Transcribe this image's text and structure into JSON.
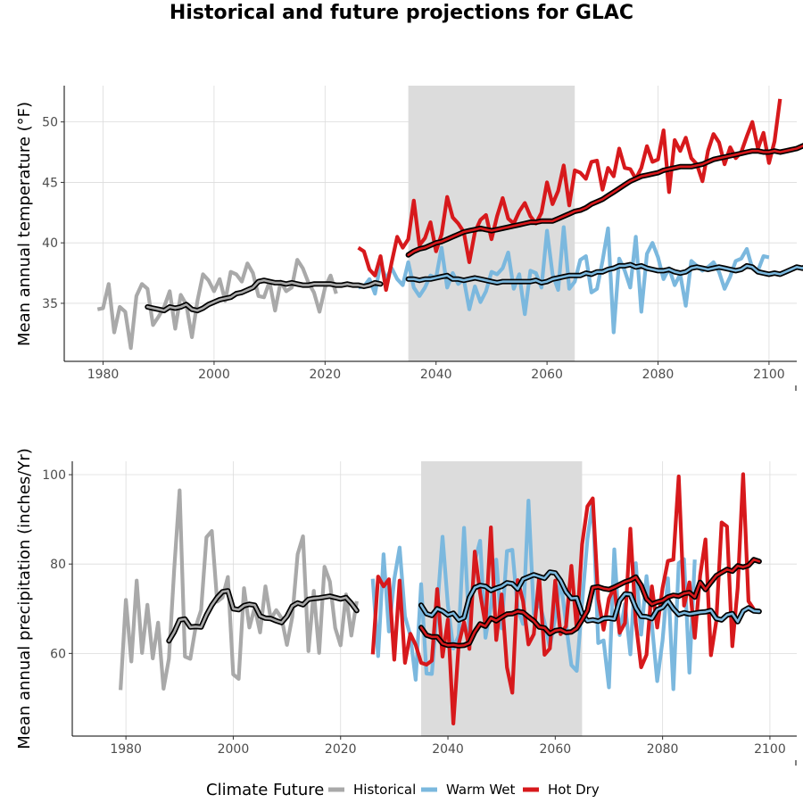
{
  "title": "Historical and future projections for GLAC",
  "legend": {
    "title": "Climate Future",
    "items": [
      {
        "label": "Historical",
        "color": "#a9a9a9"
      },
      {
        "label": "Warm Wet",
        "color": "#7bb8de"
      },
      {
        "label": "Hot Dry",
        "color": "#d7191c"
      }
    ]
  },
  "colors": {
    "historical": "#a9a9a9",
    "warm_wet": "#7bb8de",
    "hot_dry": "#d7191c",
    "smooth": "#000000",
    "shade": "#dcdcdc"
  },
  "chart_data": [
    {
      "type": "line",
      "ylabel": "Mean annual temperature (°F)",
      "xlim": [
        1973,
        2105
      ],
      "ylim": [
        30.2,
        53
      ],
      "xticks": [
        1980,
        2000,
        2020,
        2040,
        2060,
        2080,
        2100
      ],
      "yticks": [
        35,
        40,
        45,
        50
      ],
      "shaded_period": [
        2035,
        2065
      ],
      "series": [
        {
          "name": "Historical",
          "key": "historical",
          "x_start": 1979,
          "values": [
            34.5,
            34.6,
            36.6,
            32.6,
            34.7,
            34.3,
            31.3,
            35.6,
            36.6,
            36.2,
            33.2,
            33.9,
            34.7,
            36.0,
            32.9,
            35.7,
            34.9,
            32.2,
            35.2,
            37.4,
            36.9,
            36.0,
            37.0,
            35.2,
            37.6,
            37.4,
            36.8,
            38.3,
            37.5,
            35.6,
            35.5,
            36.8,
            34.4,
            36.8,
            36.0,
            36.3,
            38.6,
            37.9,
            36.7,
            35.9,
            34.3,
            36.3,
            37.3,
            35.8
          ]
        },
        {
          "name": "Warm Wet",
          "key": "warm_wet",
          "x_start": 2026,
          "values": [
            36.3,
            36.4,
            37.0,
            35.8,
            38.3,
            37.0,
            37.9,
            37.0,
            36.5,
            38.4,
            36.3,
            35.6,
            36.3,
            37.3,
            37.1,
            39.6,
            36.3,
            37.5,
            36.6,
            37.0,
            34.5,
            36.4,
            35.1,
            36.0,
            37.6,
            37.4,
            37.9,
            39.2,
            36.2,
            37.4,
            34.1,
            37.7,
            37.5,
            36.3,
            41.0,
            37.4,
            36.1,
            41.3,
            36.2,
            36.8,
            38.6,
            38.9,
            35.9,
            36.2,
            38.5,
            41.2,
            32.6,
            38.7,
            37.7,
            36.3,
            40.5,
            34.3,
            39.1,
            40.0,
            38.8,
            37.0,
            37.9,
            36.5,
            37.4,
            34.8,
            38.5,
            38.1,
            37.7,
            38.0,
            38.4,
            37.6,
            36.2,
            37.2,
            38.5,
            38.7,
            39.5,
            37.9,
            37.7,
            38.9,
            38.8
          ]
        },
        {
          "name": "Hot Dry",
          "key": "hot_dry",
          "x_start": 2026,
          "values": [
            39.6,
            39.3,
            37.8,
            37.3,
            38.9,
            36.1,
            38.4,
            40.5,
            39.6,
            40.3,
            43.5,
            39.8,
            40.4,
            41.7,
            39.3,
            40.7,
            43.8,
            42.1,
            41.6,
            40.9,
            38.4,
            40.9,
            41.9,
            42.3,
            40.3,
            42.2,
            43.7,
            42.0,
            41.6,
            42.6,
            43.3,
            42.2,
            41.6,
            42.5,
            45.0,
            43.2,
            44.3,
            46.4,
            43.1,
            46.0,
            45.8,
            45.3,
            46.7,
            46.8,
            44.4,
            46.2,
            45.5,
            47.8,
            46.2,
            46.1,
            45.3,
            46.2,
            48.0,
            46.7,
            46.9,
            49.3,
            44.2,
            48.5,
            47.6,
            48.7,
            47.0,
            46.5,
            45.1,
            47.6,
            49.0,
            48.3,
            46.5,
            47.9,
            47.0,
            47.5,
            48.8,
            50.0,
            47.8,
            49.1,
            46.6,
            48.4,
            51.9
          ]
        },
        {
          "name": "Historical smooth",
          "key": "historical",
          "smooth": true,
          "x_start": 1988,
          "values": [
            34.7,
            34.6,
            34.5,
            34.4,
            34.7,
            34.6,
            34.7,
            34.9,
            34.5,
            34.4,
            34.6,
            34.9,
            35.1,
            35.3,
            35.4,
            35.5,
            35.8,
            35.9,
            36.1,
            36.3,
            36.8,
            36.9,
            36.8,
            36.7,
            36.7,
            36.6,
            36.7,
            36.6,
            36.5,
            36.5,
            36.6,
            36.6,
            36.6,
            36.6,
            36.5,
            36.5,
            36.6,
            36.5,
            36.5,
            36.4,
            36.5,
            36.7,
            36.6
          ]
        },
        {
          "name": "Warm Wet smooth",
          "key": "warm_wet",
          "smooth": true,
          "x_start": 2035,
          "values": [
            37.0,
            37.0,
            36.9,
            37.0,
            37.0,
            37.1,
            37.2,
            37.3,
            37.0,
            37.0,
            36.9,
            37.0,
            37.1,
            37.0,
            36.9,
            36.8,
            36.7,
            36.8,
            36.8,
            36.8,
            36.8,
            36.8,
            36.8,
            36.9,
            36.7,
            36.8,
            37.0,
            37.1,
            37.2,
            37.3,
            37.3,
            37.3,
            37.5,
            37.4,
            37.6,
            37.6,
            37.8,
            37.9,
            38.1,
            38.1,
            38.2,
            38.0,
            38.1,
            37.9,
            37.8,
            37.7,
            37.7,
            37.8,
            37.6,
            37.5,
            37.6,
            37.9,
            38.0,
            37.9,
            37.8,
            37.9,
            38.0,
            37.9,
            37.8,
            37.7,
            37.8,
            38.1,
            38.0,
            37.6,
            37.5,
            37.4,
            37.5,
            37.4,
            37.6,
            37.8,
            38.0,
            37.9,
            38.1,
            38.2,
            38.2
          ]
        },
        {
          "name": "Hot Dry smooth",
          "key": "hot_dry",
          "smooth": true,
          "x_start": 2035,
          "values": [
            39.0,
            39.3,
            39.5,
            39.6,
            39.8,
            40.0,
            40.1,
            40.3,
            40.5,
            40.7,
            40.9,
            41.0,
            41.1,
            41.2,
            41.1,
            41.0,
            41.1,
            41.2,
            41.3,
            41.4,
            41.5,
            41.6,
            41.7,
            41.7,
            41.8,
            41.8,
            41.8,
            42.0,
            42.2,
            42.4,
            42.6,
            42.7,
            42.9,
            43.2,
            43.4,
            43.6,
            43.9,
            44.2,
            44.5,
            44.8,
            45.1,
            45.3,
            45.5,
            45.6,
            45.7,
            45.8,
            46.0,
            46.1,
            46.2,
            46.3,
            46.3,
            46.3,
            46.4,
            46.5,
            46.7,
            46.9,
            47.0,
            47.1,
            47.2,
            47.3,
            47.4,
            47.5,
            47.6,
            47.6,
            47.5,
            47.5,
            47.6,
            47.5,
            47.6,
            47.7,
            47.8,
            48.0,
            48.2,
            48.3,
            48.3
          ]
        }
      ]
    },
    {
      "type": "line",
      "ylabel": "Mean annual precipitation (inches/Yr)",
      "xlim": [
        1970,
        2105
      ],
      "ylim": [
        41.5,
        103
      ],
      "xticks": [
        1980,
        2000,
        2020,
        2040,
        2060,
        2080,
        2100
      ],
      "yticks": [
        60,
        80,
        100
      ],
      "shaded_period": [
        2035,
        2065
      ],
      "series": [
        {
          "name": "Historical",
          "key": "historical",
          "x_start": 1979,
          "values": [
            51.8,
            72.0,
            58.2,
            76.3,
            60.1,
            70.9,
            58.9,
            66.9,
            52.1,
            58.8,
            79.0,
            96.5,
            59.3,
            58.8,
            65.9,
            69.7,
            86.0,
            87.4,
            71.6,
            72.5,
            77.1,
            55.3,
            54.3,
            74.6,
            65.8,
            70.3,
            64.7,
            75.0,
            67.7,
            69.7,
            67.9,
            61.9,
            68.2,
            82.2,
            86.2,
            60.5,
            74.0,
            60.1,
            79.4,
            76.1,
            65.7,
            61.8,
            73.2,
            64.0,
            71.7
          ]
        },
        {
          "name": "Warm Wet",
          "key": "warm_wet",
          "x_start": 2026,
          "values": [
            76.7,
            59.4,
            82.2,
            64.9,
            76.6,
            83.7,
            68.3,
            64.0,
            54.1,
            75.5,
            55.5,
            55.4,
            70.0,
            86.1,
            70.8,
            61.1,
            64.0,
            88.1,
            64.7,
            80.6,
            85.2,
            63.5,
            70.5,
            81.0,
            65.6,
            82.9,
            83.2,
            70.0,
            66.6,
            94.2,
            68.8,
            71.5,
            66.9,
            61.4,
            68.1,
            76.6,
            66.5,
            57.4,
            56.1,
            71.2,
            85.6,
            93.9,
            62.3,
            62.9,
            52.4,
            83.3,
            64.1,
            71.1,
            59.8,
            80.2,
            64.2,
            77.3,
            66.6,
            53.8,
            62.9,
            76.8,
            52.0,
            80.2,
            81.1,
            55.7,
            81.0
          ]
        },
        {
          "name": "Hot Dry",
          "key": "hot_dry",
          "x_start": 2026,
          "values": [
            59.8,
            77.2,
            75.0,
            76.6,
            58.6,
            76.3,
            57.9,
            64.4,
            61.9,
            57.9,
            57.5,
            58.4,
            74.4,
            59.3,
            67.6,
            44.3,
            62.0,
            67.0,
            61.0,
            82.8,
            73.5,
            66.4,
            88.2,
            63.0,
            73.2,
            56.9,
            51.2,
            76.4,
            71.7,
            62.0,
            64.3,
            77.1,
            59.7,
            61.1,
            76.3,
            64.3,
            66.1,
            79.6,
            65.4,
            84.4,
            92.9,
            94.7,
            72.2,
            65.3,
            72.3,
            74.8,
            64.6,
            66.8,
            87.9,
            66.9,
            56.9,
            59.7,
            75.0,
            65.8,
            74.6,
            80.7,
            81.0,
            99.6,
            70.7,
            75.9,
            63.5,
            77.4,
            85.5,
            59.6,
            67.2,
            89.3,
            88.4,
            61.6,
            74.6,
            100.1,
            71.7,
            69.9
          ]
        },
        {
          "name": "Historical smooth",
          "key": "historical",
          "smooth": true,
          "x_start": 1988,
          "values": [
            62.8,
            64.8,
            67.5,
            67.7,
            65.9,
            66.0,
            65.9,
            68.6,
            70.8,
            72.5,
            73.8,
            74.0,
            70.0,
            69.8,
            70.7,
            71.0,
            70.8,
            68.4,
            67.9,
            67.8,
            67.3,
            66.9,
            68.3,
            70.6,
            71.3,
            70.9,
            72.1,
            72.3,
            72.4,
            72.6,
            72.8,
            72.5,
            72.2,
            72.5,
            71.2,
            69.6
          ]
        },
        {
          "name": "Warm Wet smooth",
          "key": "warm_wet",
          "smooth": true,
          "x_start": 2035,
          "values": [
            70.8,
            68.9,
            68.5,
            70.0,
            69.5,
            68.6,
            69.0,
            67.5,
            68.0,
            72.5,
            74.7,
            75.2,
            75.0,
            74.1,
            74.6,
            75.0,
            75.8,
            75.6,
            74.4,
            76.6,
            77.1,
            77.6,
            77.2,
            76.8,
            78.2,
            78.0,
            76.3,
            73.8,
            72.3,
            72.4,
            68.9,
            67.3,
            67.5,
            67.2,
            67.8,
            67.9,
            67.7,
            71.8,
            73.3,
            73.2,
            70.2,
            68.3,
            68.2,
            67.8,
            69.8,
            70.3,
            71.8,
            70.0,
            68.7,
            69.1,
            68.8,
            69.0,
            69.2,
            69.3,
            69.6,
            67.8,
            67.5,
            68.6,
            68.9,
            67.1,
            69.5,
            70.2,
            69.5,
            69.4
          ]
        },
        {
          "name": "Hot Dry smooth",
          "key": "hot_dry",
          "smooth": true,
          "x_start": 2035,
          "values": [
            65.8,
            64.1,
            63.7,
            63.7,
            62.2,
            61.8,
            61.9,
            61.7,
            61.8,
            62.3,
            64.8,
            66.6,
            66.1,
            67.9,
            67.3,
            68.1,
            68.8,
            68.9,
            69.4,
            69.2,
            68.2,
            67.3,
            65.9,
            65.7,
            64.4,
            65.1,
            65.3,
            64.7,
            64.8,
            65.6,
            67.5,
            69.6,
            74.7,
            74.9,
            74.5,
            74.3,
            74.8,
            75.4,
            76.0,
            76.4,
            77.1,
            75.2,
            72.2,
            71.0,
            71.5,
            71.8,
            72.6,
            73.0,
            72.8,
            73.4,
            73.6,
            72.6,
            75.9,
            74.3,
            75.9,
            77.4,
            78.1,
            78.8,
            78.4,
            79.6,
            79.3,
            79.7,
            81.0,
            80.6
          ]
        }
      ]
    }
  ]
}
